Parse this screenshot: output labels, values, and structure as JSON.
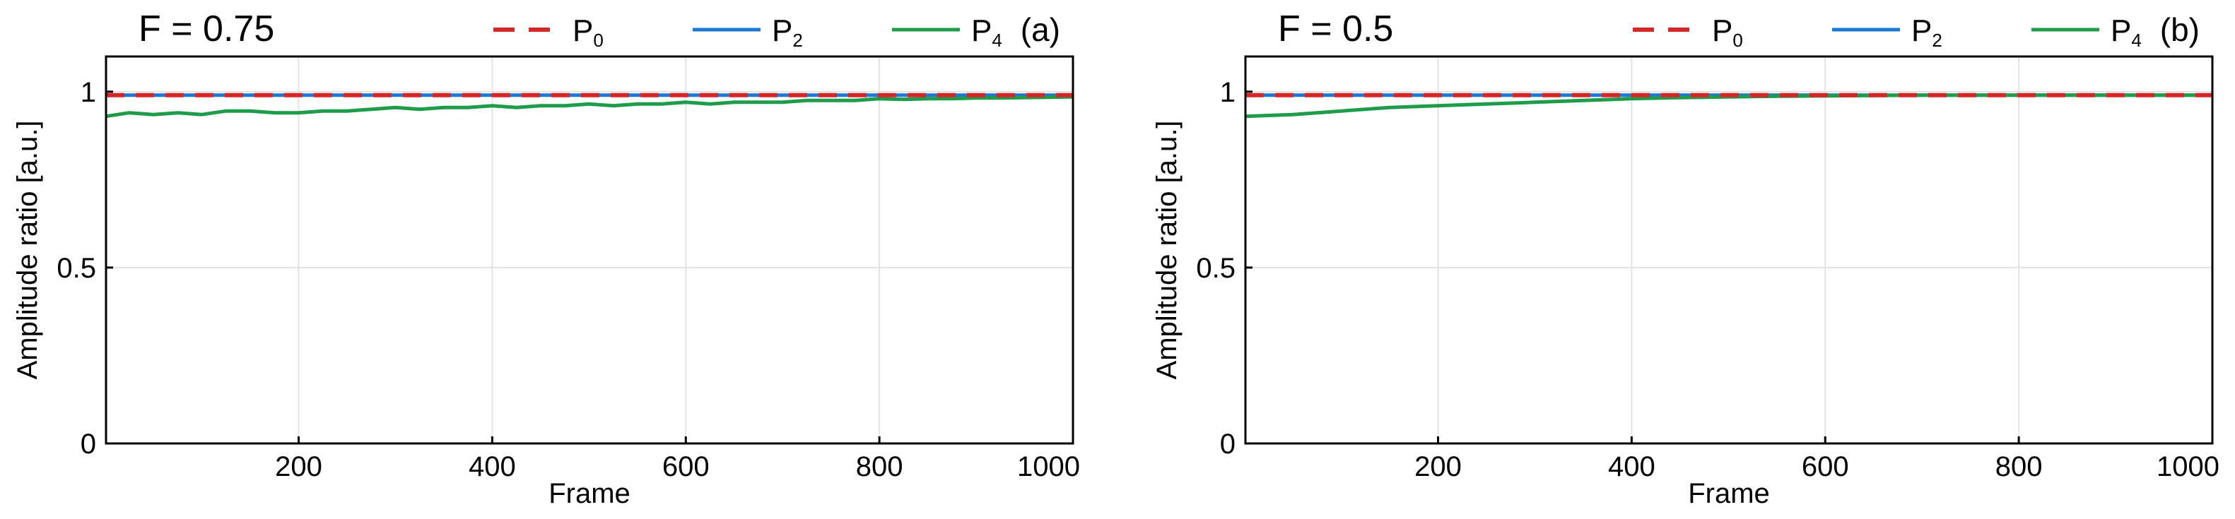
{
  "chart_data": [
    {
      "type": "line",
      "panel": "(a)",
      "title": "F = 0.75",
      "xlabel": "Frame",
      "ylabel": "Amplitude ratio [a.u.]",
      "xlim": [
        1,
        1000
      ],
      "ylim": [
        0,
        1.1
      ],
      "xticks": [
        200,
        400,
        600,
        800,
        1000
      ],
      "xtick_labels": [
        "200",
        "400",
        "600",
        "800",
        "1000"
      ],
      "yticks": [
        0,
        0.5,
        1
      ],
      "ytick_labels": [
        "0",
        "0.5",
        "1"
      ],
      "grid": true,
      "legend_position": "top-right",
      "series": [
        {
          "name": "P0",
          "base": "P",
          "sub": "0",
          "color": "#d62728",
          "style": "dashed",
          "x": [
            1,
            100,
            200,
            300,
            400,
            500,
            600,
            700,
            800,
            900,
            1000
          ],
          "y": [
            0.99,
            0.99,
            0.99,
            0.99,
            0.99,
            0.99,
            0.99,
            0.99,
            0.99,
            0.99,
            0.99
          ]
        },
        {
          "name": "P2",
          "base": "P",
          "sub": "2",
          "color": "#1f77d4",
          "style": "solid",
          "x": [
            1,
            100,
            200,
            300,
            400,
            500,
            600,
            700,
            800,
            900,
            1000
          ],
          "y": [
            0.99,
            0.99,
            0.99,
            0.99,
            0.99,
            0.99,
            0.99,
            0.99,
            0.99,
            0.99,
            0.99
          ]
        },
        {
          "name": "P4",
          "base": "P",
          "sub": "4",
          "color": "#1e9c4a",
          "style": "solid",
          "x": [
            1,
            25,
            50,
            75,
            100,
            125,
            150,
            175,
            200,
            225,
            250,
            275,
            300,
            325,
            350,
            375,
            400,
            425,
            450,
            475,
            500,
            525,
            550,
            575,
            600,
            625,
            650,
            675,
            700,
            725,
            750,
            775,
            800,
            825,
            850,
            875,
            900,
            925,
            950,
            975,
            1000
          ],
          "y": [
            0.93,
            0.94,
            0.935,
            0.94,
            0.935,
            0.945,
            0.945,
            0.94,
            0.94,
            0.945,
            0.945,
            0.95,
            0.955,
            0.95,
            0.955,
            0.955,
            0.96,
            0.955,
            0.96,
            0.96,
            0.965,
            0.96,
            0.965,
            0.965,
            0.97,
            0.965,
            0.97,
            0.97,
            0.97,
            0.975,
            0.975,
            0.975,
            0.98,
            0.978,
            0.98,
            0.98,
            0.982,
            0.982,
            0.983,
            0.984,
            0.985
          ]
        }
      ]
    },
    {
      "type": "line",
      "panel": "(b)",
      "title": "F = 0.5",
      "xlabel": "Frame",
      "ylabel": "Amplitude ratio [a.u.]",
      "xlim": [
        1,
        1000
      ],
      "ylim": [
        0,
        1.1
      ],
      "xticks": [
        200,
        400,
        600,
        800,
        1000
      ],
      "xtick_labels": [
        "200",
        "400",
        "600",
        "800",
        "1000"
      ],
      "yticks": [
        0,
        0.5,
        1
      ],
      "ytick_labels": [
        "0",
        "0.5",
        "1"
      ],
      "grid": true,
      "legend_position": "top-right",
      "series": [
        {
          "name": "P0",
          "base": "P",
          "sub": "0",
          "color": "#d62728",
          "style": "dashed",
          "x": [
            1,
            100,
            200,
            300,
            400,
            500,
            600,
            700,
            800,
            900,
            1000
          ],
          "y": [
            0.99,
            0.99,
            0.99,
            0.99,
            0.99,
            0.99,
            0.99,
            0.99,
            0.99,
            0.99,
            0.99
          ]
        },
        {
          "name": "P2",
          "base": "P",
          "sub": "2",
          "color": "#1f77d4",
          "style": "solid",
          "x": [
            1,
            100,
            200,
            300,
            400,
            500,
            600,
            700,
            800,
            900,
            1000
          ],
          "y": [
            0.99,
            0.99,
            0.99,
            0.99,
            0.99,
            0.99,
            0.99,
            0.99,
            0.99,
            0.99,
            0.99
          ]
        },
        {
          "name": "P4",
          "base": "P",
          "sub": "4",
          "color": "#1e9c4a",
          "style": "solid",
          "x": [
            1,
            50,
            100,
            150,
            200,
            250,
            300,
            350,
            400,
            450,
            500,
            550,
            600,
            650,
            700,
            750,
            800,
            850,
            900,
            950,
            1000
          ],
          "y": [
            0.93,
            0.935,
            0.945,
            0.955,
            0.96,
            0.965,
            0.97,
            0.975,
            0.98,
            0.983,
            0.985,
            0.987,
            0.988,
            0.989,
            0.99,
            0.99,
            0.99,
            0.99,
            0.99,
            0.99,
            0.99
          ]
        }
      ]
    }
  ]
}
